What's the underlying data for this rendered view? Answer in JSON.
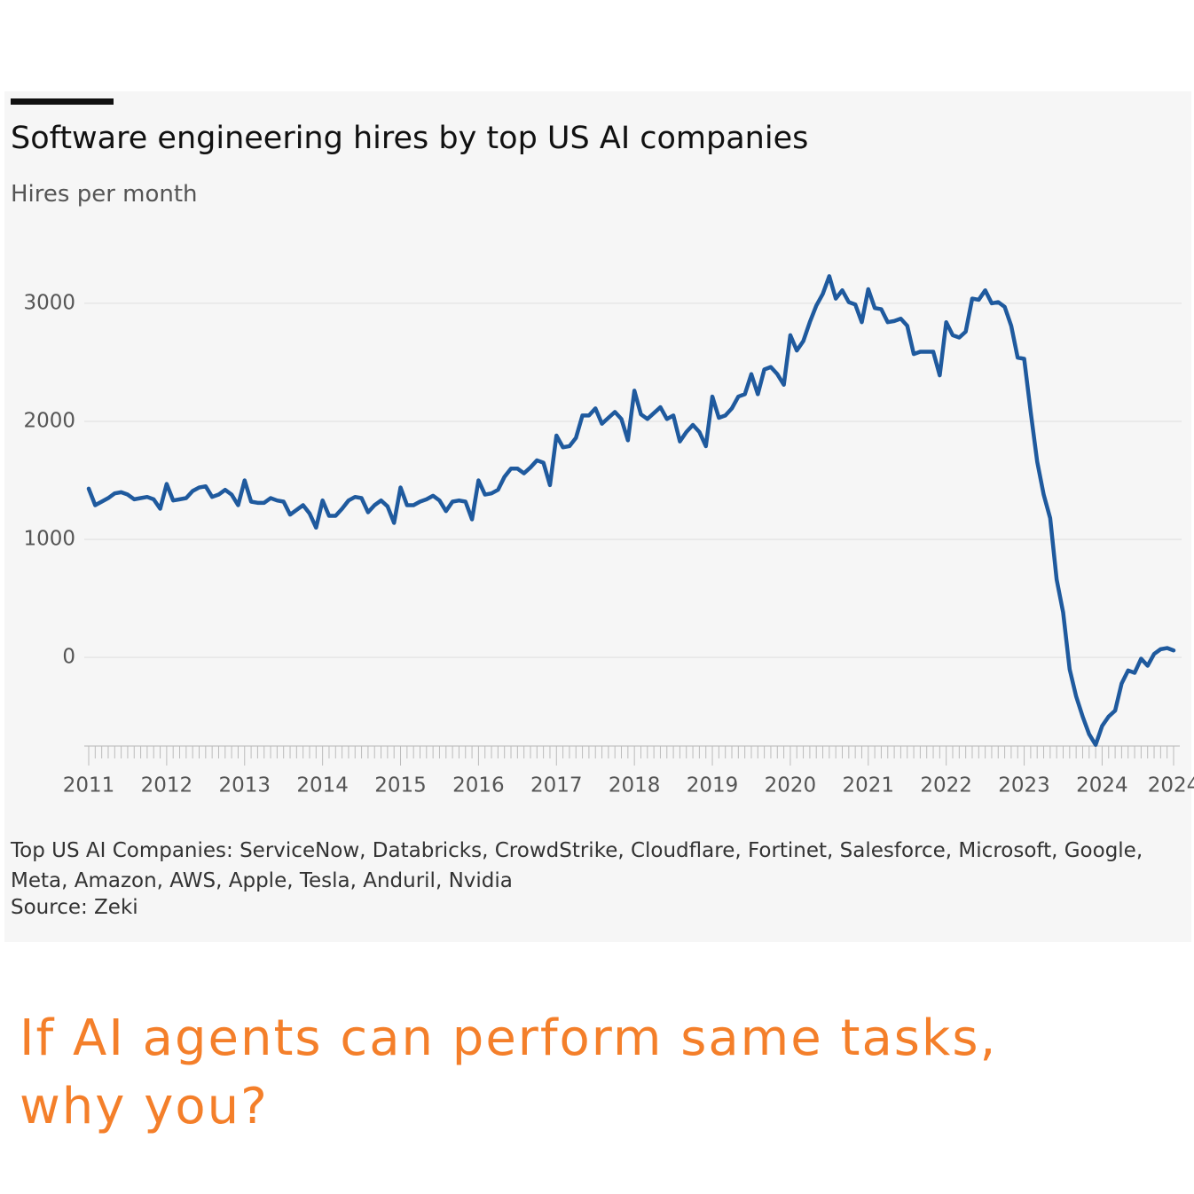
{
  "chart_data": {
    "type": "line",
    "title": "Software engineering hires by top US AI companies",
    "subtitle": "Hires per month",
    "categories": [
      "2011",
      null,
      null,
      null,
      null,
      null,
      null,
      null,
      null,
      null,
      null,
      null,
      "2012",
      null,
      null,
      null,
      null,
      null,
      null,
      null,
      null,
      null,
      null,
      null,
      "2013",
      null,
      null,
      null,
      null,
      null,
      null,
      null,
      null,
      null,
      null,
      null,
      "2014",
      null,
      null,
      null,
      null,
      null,
      null,
      null,
      null,
      null,
      null,
      null,
      "2015",
      null,
      null,
      null,
      null,
      null,
      null,
      null,
      null,
      null,
      null,
      null,
      "2016",
      null,
      null,
      null,
      null,
      null,
      null,
      null,
      null,
      null,
      null,
      null,
      "2017",
      null,
      null,
      null,
      null,
      null,
      null,
      null,
      null,
      null,
      null,
      null,
      "2018",
      null,
      null,
      null,
      null,
      null,
      null,
      null,
      null,
      null,
      null,
      null,
      "2019",
      null,
      null,
      null,
      null,
      null,
      null,
      null,
      null,
      null,
      null,
      null,
      "2020",
      null,
      null,
      null,
      null,
      null,
      null,
      null,
      null,
      null,
      null,
      null,
      "2021",
      null,
      null,
      null,
      null,
      null,
      null,
      null,
      null,
      null,
      null,
      null,
      "2022",
      null,
      null,
      null,
      null,
      null,
      null,
      null,
      null,
      null,
      null,
      null,
      "2023",
      null,
      null,
      null,
      null,
      null,
      null,
      null,
      null,
      null,
      null,
      null,
      "2024",
      null,
      null,
      null,
      null,
      null,
      null,
      null,
      null,
      null,
      null,
      "2024"
    ],
    "values": [
      1430,
      1290,
      1320,
      1350,
      1390,
      1400,
      1380,
      1340,
      1350,
      1360,
      1340,
      1260,
      1470,
      1330,
      1340,
      1350,
      1410,
      1440,
      1450,
      1360,
      1380,
      1420,
      1380,
      1290,
      1500,
      1320,
      1310,
      1310,
      1350,
      1330,
      1320,
      1210,
      1250,
      1290,
      1220,
      1100,
      1330,
      1200,
      1200,
      1260,
      1330,
      1360,
      1350,
      1230,
      1290,
      1330,
      1280,
      1140,
      1440,
      1290,
      1290,
      1320,
      1340,
      1370,
      1330,
      1240,
      1320,
      1330,
      1320,
      1170,
      1500,
      1380,
      1390,
      1420,
      1530,
      1600,
      1600,
      1560,
      1610,
      1670,
      1650,
      1460,
      1880,
      1780,
      1790,
      1860,
      2050,
      2050,
      2110,
      1980,
      2030,
      2080,
      2020,
      1840,
      2260,
      2060,
      2020,
      2070,
      2120,
      2020,
      2050,
      1830,
      1910,
      1970,
      1910,
      1790,
      2210,
      2030,
      2050,
      2110,
      2210,
      2230,
      2400,
      2230,
      2440,
      2460,
      2400,
      2310,
      2730,
      2600,
      2680,
      2840,
      2980,
      3080,
      3230,
      3040,
      3110,
      3010,
      2990,
      2840,
      3120,
      2960,
      2950,
      2840,
      2850,
      2870,
      2810,
      2570,
      2590,
      2590,
      2590,
      2390,
      2840,
      2730,
      2710,
      2760,
      3040,
      3030,
      3110,
      3000,
      3010,
      2970,
      2810,
      2540,
      2530,
      2080,
      1660,
      1380,
      1180,
      660,
      380,
      -100,
      -330,
      -500,
      -650,
      -740,
      -580,
      -500,
      -450,
      -220,
      -110,
      -130,
      -10,
      -70,
      30,
      70,
      80,
      60
    ],
    "color": "#1f5a9e",
    "ylim": [
      -750,
      3300
    ],
    "yticks": [
      0,
      1000,
      2000,
      3000
    ],
    "grid": true,
    "notes": "Top US AI Companies: ServiceNow, Databricks, CrowdStrike, Cloudflare, Fortinet, Salesforce, Microsoft, Google, Meta, Amazon, AWS, Apple, Tesla, Anduril, Nvidia",
    "source": "Source: Zeki"
  },
  "caption": [
    "If AI agents can perform same tasks,",
    "why you?"
  ]
}
